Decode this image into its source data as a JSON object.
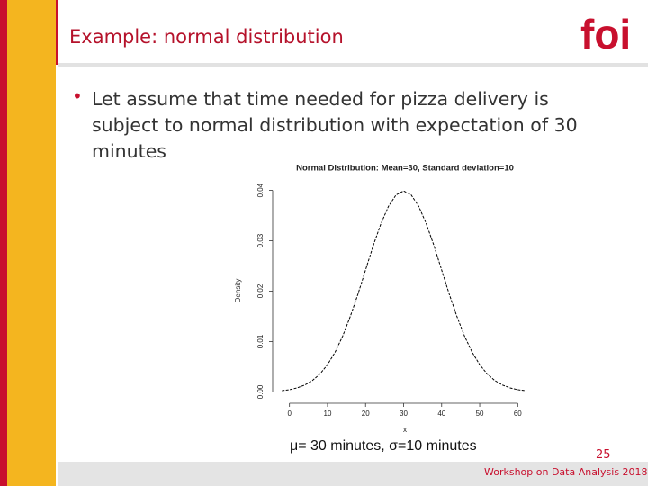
{
  "slide": {
    "title": "Example: normal distribution",
    "logo": "foi",
    "bullet": "Let assume that time needed for pizza delivery is subject to normal distribution with expectation of 30 minutes",
    "caption": "μ= 30 minutes, σ=10 minutes",
    "page_number": "25",
    "footer": "Workshop on Data Analysis 2018"
  },
  "chart_data": {
    "type": "line",
    "title": "Normal Distribution:  Mean=30, Standard deviation=10",
    "xlabel": "x",
    "ylabel": "Density",
    "x": [
      -2,
      0,
      2,
      4,
      6,
      8,
      10,
      12,
      14,
      16,
      18,
      20,
      22,
      24,
      26,
      28,
      30,
      32,
      34,
      36,
      38,
      40,
      42,
      44,
      46,
      48,
      50,
      52,
      54,
      56,
      58,
      60,
      62
    ],
    "series": [
      {
        "color": "#000000",
        "values": [
          0.00024,
          0.00044,
          0.00079,
          0.00136,
          0.00224,
          0.00355,
          0.0054,
          0.0079,
          0.0111,
          0.015,
          0.0194,
          0.0242,
          0.029,
          0.0333,
          0.0368,
          0.0391,
          0.0399,
          0.0391,
          0.0368,
          0.0333,
          0.029,
          0.0242,
          0.0194,
          0.015,
          0.0111,
          0.0079,
          0.0054,
          0.00355,
          0.00224,
          0.00136,
          0.00079,
          0.00044,
          0.00024
        ]
      }
    ],
    "xlim": [
      -3,
      63
    ],
    "ylim": [
      -0.001,
      0.041
    ],
    "xticks": [
      0,
      10,
      20,
      30,
      40,
      50,
      60
    ],
    "yticks": [
      {
        "value": 0,
        "label": "0.00"
      },
      {
        "value": 0.01,
        "label": "0.01"
      },
      {
        "value": 0.02,
        "label": "0.02"
      },
      {
        "value": 0.03,
        "label": "0.03"
      },
      {
        "value": 0.04,
        "label": "0.04"
      }
    ]
  }
}
